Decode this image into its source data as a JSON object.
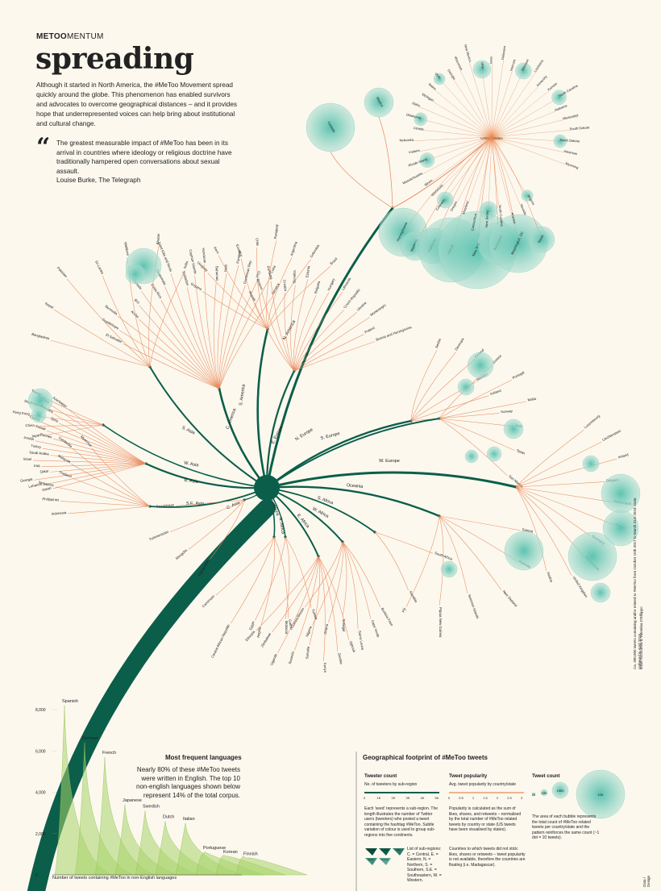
{
  "header": {
    "brand_bold": "METOO",
    "brand_rest": "MENTUM",
    "title": "spreading",
    "intro": "Although it started in North America, the #MeToo Movement spread quickly around the globe. This phenomenon has enabled survivors and advocates to overcome geographical distances – and it provides hope that underrepresented voices can help bring about institutional and cultural change.",
    "quote": "The greatest measurable impact of #MeToo has been in its arrival in countries where ideology or religious doctrine have traditionally hampered open conversations about sexual assault.",
    "quote_author": "Louise Burke, The Telegraph"
  },
  "colors": {
    "stem": "#0b5e4a",
    "branch": "#e9875a",
    "bubble": "#a9dccf",
    "bubble_core": "#5cc3b0",
    "bg": "#fcf8ee",
    "lang": "#a7d36b"
  },
  "regions": [
    {
      "id": "n-america",
      "label": "N. America"
    },
    {
      "id": "s-america",
      "label": "S. America"
    },
    {
      "id": "c-america",
      "label": "C. America"
    },
    {
      "id": "s-asia",
      "label": "S. Asia"
    },
    {
      "id": "w-asia",
      "label": "W. Asia"
    },
    {
      "id": "e-asia",
      "label": "E. Asia"
    },
    {
      "id": "se-asia",
      "label": "S.E. Asia"
    },
    {
      "id": "c-asia",
      "label": "C. Asia"
    },
    {
      "id": "e-europe",
      "label": "E. Europe"
    },
    {
      "id": "n-europe",
      "label": "N. Europe"
    },
    {
      "id": "s-europe",
      "label": "S. Europe"
    },
    {
      "id": "w-europe",
      "label": "W. Europe"
    },
    {
      "id": "oceania",
      "label": "Oceania"
    },
    {
      "id": "s-africa",
      "label": "S. Africa"
    },
    {
      "id": "w-africa",
      "label": "W. Africa"
    },
    {
      "id": "e-africa",
      "label": "E. Africa"
    },
    {
      "id": "c-africa",
      "label": "C. Africa"
    },
    {
      "id": "n-africa",
      "label": "N. Africa"
    }
  ],
  "countries": {
    "n_america_us_states": [
      "Pennsylvania",
      "Montana",
      "California",
      "Hawaii",
      "New York",
      "Tennessee",
      "Washington, DC",
      "Texas",
      "Virginia",
      "Nevada",
      "Arizona",
      "North Carolina",
      "New Jersey",
      "Connecticut",
      "Maryland",
      "Oregon",
      "Colorado",
      "Minnesota",
      "Illinois",
      "Massachusetts",
      "Rhode Island",
      "Indiana",
      "Nebraska",
      "Florida",
      "Oklahoma",
      "Idaho",
      "Michigan",
      "Maine",
      "Utah",
      "Georgia",
      "Wisconsin",
      "New Mexico",
      "Ohio",
      "Iowa",
      "Delaware",
      "Vermont",
      "Missouri",
      "Louisiana",
      "Kentucky",
      "Kansas",
      "South Carolina",
      "Alabama",
      "Mississippi",
      "South Dakota",
      "North Dakota",
      "Arkansas",
      "Wyoming"
    ],
    "n_america": [
      "Canada",
      "Mexico",
      "United States"
    ],
    "s_america": [
      "Guyana",
      "Uruguay",
      "Peru",
      "Ecuador",
      "Chile",
      "Paraguay",
      "Argentina",
      "Colombia",
      "Brazil"
    ],
    "c_america": [
      "El Salvador",
      "Guadeloupe",
      "Bermuda",
      "Aruba",
      "BVI",
      "Grenada",
      "Costa Rica",
      "Guatemala",
      "Saint Kitts and Nevis",
      "Barbados",
      "Cayman Islands",
      "Honduras",
      "Bahamas",
      "Haiti",
      "Panama",
      "Dominican Rep.",
      "TTO",
      "Cuba",
      "Jamaica"
    ],
    "s_asia": [
      "Bangladesh",
      "Nepal",
      "Pakistan",
      "Sri Lanka",
      "Maldives",
      "Bhutan",
      "India"
    ],
    "w_asia": [
      "Oman",
      "Lebanon",
      "Georgia",
      "Qatar",
      "Iraq",
      "Israel",
      "Saudi Arabia",
      "Turkey",
      "Jordan",
      "Bahrain",
      "Kuwait",
      "Cyprus",
      "Syria",
      "Palestine",
      "Armenia",
      "Azerbaijan"
    ],
    "e_asia": [
      "Japan",
      "China",
      "Hong Kong",
      "South Korea",
      "Taiwan"
    ],
    "se_asia": [
      "Indonesia",
      "Philippines",
      "Singapore",
      "Thailand",
      "Malaysia",
      "Cambodia",
      "Myanmar"
    ],
    "c_asia": [
      "Afghanistan",
      "Mongolia",
      "Turkmenistan",
      "Kazakhstan"
    ],
    "e_europe": [
      "Russia",
      "Belarus",
      "Romania",
      "Croatia",
      "Slovakia",
      "Estonia",
      "Bulgaria",
      "Hungary",
      "Lithuania",
      "Czech Republic",
      "Ukraine",
      "Montenegro",
      "Poland",
      "Bosnia and Herzegovina"
    ],
    "n_europe": [
      "Serbia",
      "Denmark",
      "Finland",
      "Sweden",
      "Iceland",
      "Norway"
    ],
    "s_europe": [
      "Greece",
      "Portugal",
      "Malta",
      "Italy",
      "Spain",
      "San Marino"
    ],
    "w_europe": [
      "Luxembourg",
      "Liechtenstein",
      "Ireland",
      "Belgium",
      "Switzerland",
      "France",
      "Germany",
      "Netherlands",
      "United Kingdom",
      "Austria"
    ],
    "oceania": [
      "Samoa",
      "Australia",
      "New Zealand",
      "Solomon Islands",
      "Papua New Guinea",
      "Fiji"
    ],
    "s_africa": [
      "South Africa",
      "Namibia"
    ],
    "w_africa": [
      "Burkina Faso",
      "Cape Verde",
      "Sierra Leone",
      "Senegal",
      "Ghana",
      "Nigeria",
      "Guinea-Bissau"
    ],
    "e_africa": [
      "Djibouti",
      "Zambia",
      "Kenya",
      "Somalia",
      "Rwanda",
      "Uganda",
      "Zimbabwe",
      "Ethiopia"
    ],
    "c_africa": [
      "Gabon",
      "Angola",
      "Central African Republic",
      "Cameroon"
    ],
    "n_africa": [
      "Tunisia",
      "Morocco",
      "Egypt"
    ]
  },
  "languages": {
    "title": "Most frequent languages",
    "description": "Nearly 80% of these #MeToo tweets were written in English. The top 10 non-english languages shown below represent 14% of the total corpus.",
    "axis_label": "Number of tweets containing #MeToo in non-English languages",
    "y_ticks": [
      "8,000",
      "6,000",
      "4,000",
      "2,000",
      "0"
    ],
    "items": [
      {
        "name": "Spanish",
        "value": 8200
      },
      {
        "name": "German",
        "value": 6400
      },
      {
        "name": "French",
        "value": 5700
      },
      {
        "name": "Japanese",
        "value": 3400
      },
      {
        "name": "Swedish",
        "value": 3100
      },
      {
        "name": "Dutch",
        "value": 2600
      },
      {
        "name": "Italian",
        "value": 2500
      },
      {
        "name": "Portuguese",
        "value": 1100
      },
      {
        "name": "Korean",
        "value": 900
      },
      {
        "name": "Finnish",
        "value": 800
      }
    ]
  },
  "legend": {
    "title": "Geographical footprint of #MeToo tweets",
    "tweeter_count": {
      "heading": "Tweeter count",
      "sub": "No. of tweeters by sub-region",
      "ticks": [
        "0",
        "1K",
        "2K",
        "3K",
        "4K",
        "5K"
      ],
      "text": "Each 'seed' represents a sub-region. The length illustrates the number of Twitter users (tweeters) who posted a tweet containing the hashtag #MeToo. Subtle variation of colour is used to group sub-regions into five continents."
    },
    "tweet_popularity": {
      "heading": "Tweet popularity",
      "sub": "Avg. tweet popularity by country/state",
      "ticks": [
        "0",
        "0.5",
        "1",
        "1.5",
        "2",
        "2.5",
        "3"
      ],
      "text": "Popularity is calculated as the sum of likes, shares, and retweets – normalised by the total number of #MeToo related tweets by country or state (US tweets have been visualised by states)."
    },
    "tweet_count": {
      "heading": "Tweet count",
      "samples": [
        "10",
        "100",
        "1000",
        "10K"
      ],
      "text": "The area of each bubble represents the total count of #MeToo related tweets per country/state and the pattern reinforces the same count (~1 dot = 10 tweets)."
    },
    "subregion_text": "List of sub-regions: C. = Central, E. = Eastern, N. = Northern, S. = Southern, S.E. = Southeastern, W. = Western.",
    "countries_note": "Countries to which tweets did not stick: likes, shares or retweets – tweet popularity is not available, therefore the countries are floating (i.e. Madagascar).",
    "seed_labels": [
      "Americas",
      "Europe",
      "Asia",
      "Africa",
      "Oceania"
    ]
  },
  "credits": {
    "data": "Ca. 300,000 tweets containing and/or related to #MeToo from October 15th 2017 to March 31st 2018. Data gathered in April 2018.",
    "authors": "Lucie Kocourova & Valentina D'Efilippo",
    "label": "Data / Design"
  }
}
